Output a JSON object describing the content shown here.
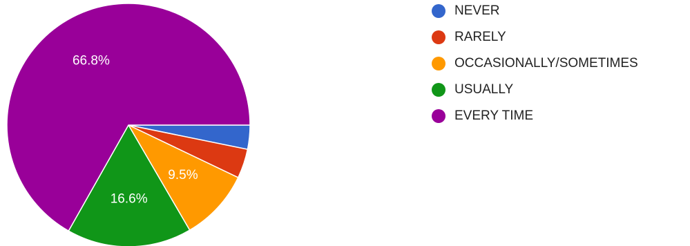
{
  "chart_data": {
    "type": "pie",
    "categories": [
      "NEVER",
      "RARELY",
      "OCCASIONALLY/SOMETIMES",
      "USUALLY",
      "EVERY TIME"
    ],
    "values": [
      3.2,
      3.9,
      9.5,
      16.6,
      66.8
    ],
    "colors": [
      "#3366cc",
      "#dc3912",
      "#ff9900",
      "#109618",
      "#990099"
    ],
    "data_labels": [
      "",
      "",
      "9.5%",
      "16.6%",
      "66.8%"
    ],
    "legend": {
      "position": "right",
      "entries": [
        "NEVER",
        "RARELY",
        "OCCASIONALLY/SOMETIMES",
        "USUALLY",
        "EVERY TIME"
      ]
    }
  }
}
